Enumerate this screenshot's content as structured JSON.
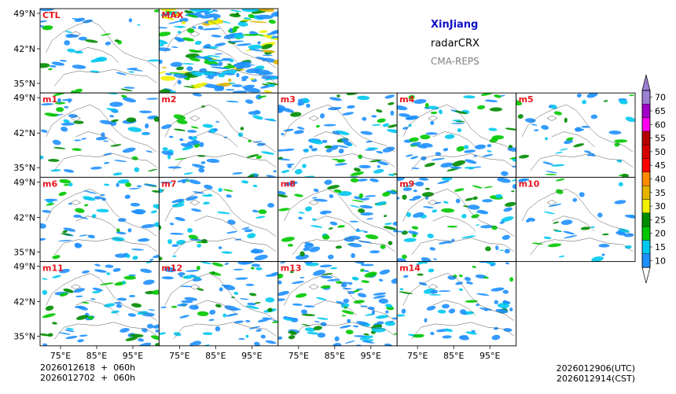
{
  "titles": {
    "region": "XinJiang",
    "variable": "radarCRX",
    "model": "CMA-REPS",
    "region_color": "#1010c8",
    "model_color": "#808080"
  },
  "init_time": {
    "utc_line": "2026012618  +  060h",
    "cst_line": "2026012702  +  060h"
  },
  "valid_time": {
    "utc": "2026012906(UTC)",
    "cst": "2026012914(CST)"
  },
  "lat_labels": [
    "49°N",
    "42°N",
    "35°N"
  ],
  "lon_labels": [
    "75°E",
    "85°E",
    "95°E"
  ],
  "label_color": "#e8141c",
  "panels": [
    {
      "row": 0,
      "col": 0,
      "label": "CTL",
      "density": 0.35,
      "seed": 11
    },
    {
      "row": 0,
      "col": 1,
      "label": "MAX",
      "density": 1.6,
      "seed": 23
    },
    {
      "row": 1,
      "col": 0,
      "label": "m1",
      "density": 0.5,
      "seed": 31
    },
    {
      "row": 1,
      "col": 1,
      "label": "m2",
      "density": 0.5,
      "seed": 37
    },
    {
      "row": 1,
      "col": 2,
      "label": "m3",
      "density": 0.7,
      "seed": 41
    },
    {
      "row": 1,
      "col": 3,
      "label": "m4",
      "density": 0.6,
      "seed": 43
    },
    {
      "row": 1,
      "col": 4,
      "label": "m5",
      "density": 0.35,
      "seed": 47
    },
    {
      "row": 2,
      "col": 0,
      "label": "m6",
      "density": 0.55,
      "seed": 53
    },
    {
      "row": 2,
      "col": 1,
      "label": "m7",
      "density": 0.45,
      "seed": 59
    },
    {
      "row": 2,
      "col": 2,
      "label": "m8",
      "density": 0.6,
      "seed": 61
    },
    {
      "row": 2,
      "col": 3,
      "label": "m9",
      "density": 0.6,
      "seed": 67
    },
    {
      "row": 2,
      "col": 4,
      "label": "m10",
      "density": 0.3,
      "seed": 71
    },
    {
      "row": 3,
      "col": 0,
      "label": "m11",
      "density": 0.6,
      "seed": 73
    },
    {
      "row": 3,
      "col": 1,
      "label": "m12",
      "density": 0.65,
      "seed": 79
    },
    {
      "row": 3,
      "col": 2,
      "label": "m13",
      "density": 0.9,
      "seed": 83
    },
    {
      "row": 3,
      "col": 3,
      "label": "m14",
      "density": 0.55,
      "seed": 89
    }
  ],
  "colorbar": {
    "levels": [
      "10",
      "15",
      "20",
      "25",
      "30",
      "35",
      "40",
      "45",
      "50",
      "55",
      "60",
      "65",
      "70"
    ],
    "colors": [
      "#1e90ff",
      "#00c8f0",
      "#00c800",
      "#008c00",
      "#f0f000",
      "#e6b400",
      "#ff8c00",
      "#ff0000",
      "#d70000",
      "#b40000",
      "#ff00f0",
      "#a000c8",
      "#9b7fd0"
    ],
    "over_color": "#9b7fd0",
    "under_color": "#ffffff"
  }
}
